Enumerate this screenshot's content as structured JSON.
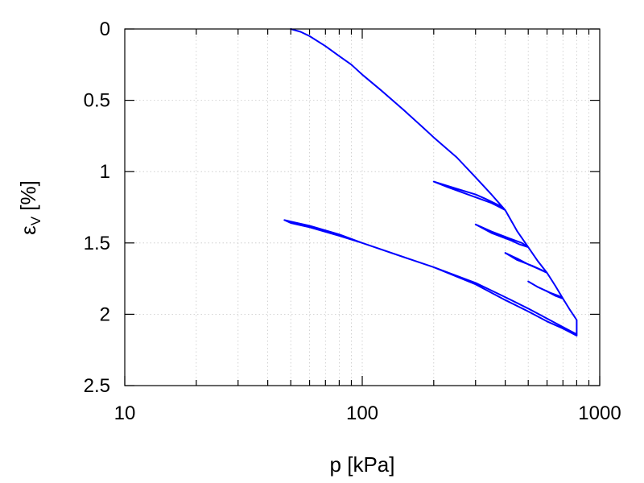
{
  "chart_data": {
    "type": "line",
    "xlabel": "p [kPa]",
    "ylabel": "ε",
    "ylabel_subscript": "V",
    "ylabel_suffix": " [%]",
    "x_scale": "log",
    "xlim": [
      10,
      1000
    ],
    "ylim": [
      0,
      2.5
    ],
    "y_inverted": true,
    "grid": true,
    "x_ticks": [
      {
        "value": 10,
        "label": "10"
      },
      {
        "value": 100,
        "label": "100"
      },
      {
        "value": 1000,
        "label": "1000"
      }
    ],
    "y_ticks": [
      {
        "value": 0,
        "label": "0"
      },
      {
        "value": 0.5,
        "label": "0.5"
      },
      {
        "value": 1,
        "label": "1"
      },
      {
        "value": 1.5,
        "label": "1.5"
      },
      {
        "value": 2,
        "label": "2"
      },
      {
        "value": 2.5,
        "label": "2.5"
      }
    ],
    "series": [
      {
        "color": "#0000ff",
        "points": [
          [
            50,
            0.0
          ],
          [
            55,
            0.02
          ],
          [
            60,
            0.05
          ],
          [
            70,
            0.12
          ],
          [
            80,
            0.19
          ],
          [
            90,
            0.25
          ],
          [
            100,
            0.32
          ],
          [
            120,
            0.43
          ],
          [
            150,
            0.57
          ],
          [
            180,
            0.69
          ],
          [
            200,
            0.76
          ],
          [
            250,
            0.9
          ],
          [
            300,
            1.04
          ],
          [
            350,
            1.16
          ],
          [
            400,
            1.27
          ],
          [
            380,
            1.24
          ],
          [
            330,
            1.19
          ],
          [
            300,
            1.16
          ],
          [
            250,
            1.12
          ],
          [
            200,
            1.07
          ],
          [
            230,
            1.11
          ],
          [
            300,
            1.18
          ],
          [
            350,
            1.22
          ],
          [
            380,
            1.25
          ],
          [
            400,
            1.27
          ],
          [
            450,
            1.42
          ],
          [
            500,
            1.53
          ],
          [
            460,
            1.51
          ],
          [
            420,
            1.48
          ],
          [
            350,
            1.43
          ],
          [
            300,
            1.37
          ],
          [
            350,
            1.42
          ],
          [
            420,
            1.47
          ],
          [
            470,
            1.5
          ],
          [
            500,
            1.53
          ],
          [
            550,
            1.63
          ],
          [
            600,
            1.71
          ],
          [
            550,
            1.68
          ],
          [
            500,
            1.65
          ],
          [
            450,
            1.61
          ],
          [
            400,
            1.57
          ],
          [
            450,
            1.62
          ],
          [
            520,
            1.66
          ],
          [
            570,
            1.69
          ],
          [
            600,
            1.71
          ],
          [
            650,
            1.8
          ],
          [
            700,
            1.89
          ],
          [
            650,
            1.87
          ],
          [
            600,
            1.84
          ],
          [
            550,
            1.81
          ],
          [
            500,
            1.77
          ],
          [
            550,
            1.81
          ],
          [
            620,
            1.85
          ],
          [
            670,
            1.87
          ],
          [
            700,
            1.89
          ],
          [
            750,
            1.97
          ],
          [
            800,
            2.04
          ],
          [
            800,
            2.09
          ],
          [
            800,
            2.13
          ],
          [
            800,
            2.15
          ],
          [
            700,
            2.1
          ],
          [
            600,
            2.05
          ],
          [
            500,
            1.98
          ],
          [
            400,
            1.9
          ],
          [
            300,
            1.79
          ],
          [
            200,
            1.67
          ],
          [
            150,
            1.6
          ],
          [
            100,
            1.5
          ],
          [
            80,
            1.45
          ],
          [
            60,
            1.39
          ],
          [
            50,
            1.36
          ],
          [
            47,
            1.34
          ],
          [
            50,
            1.35
          ],
          [
            60,
            1.38
          ],
          [
            80,
            1.44
          ],
          [
            100,
            1.5
          ],
          [
            150,
            1.6
          ],
          [
            200,
            1.67
          ],
          [
            300,
            1.78
          ],
          [
            400,
            1.88
          ],
          [
            500,
            1.96
          ],
          [
            600,
            2.03
          ],
          [
            700,
            2.09
          ],
          [
            800,
            2.14
          ]
        ]
      }
    ]
  }
}
